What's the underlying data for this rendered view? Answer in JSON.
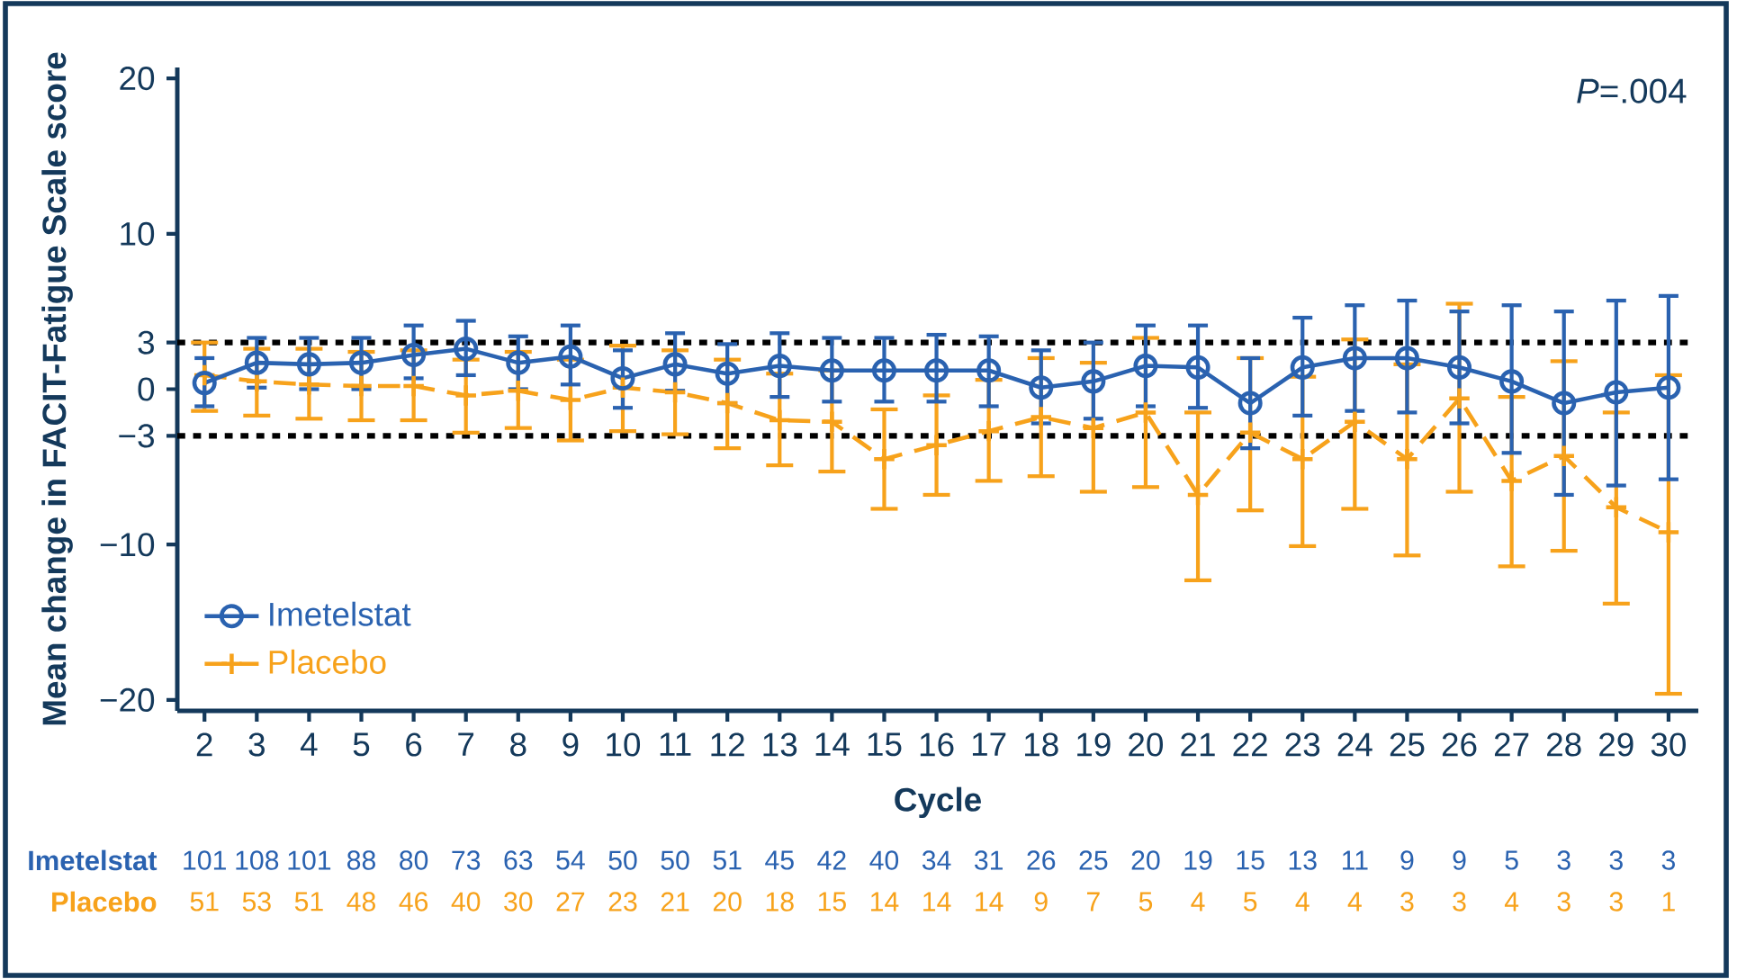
{
  "chart_data": {
    "type": "line",
    "xlabel": "Cycle",
    "ylabel": "Mean change in FACIT-Fatigue Scale score",
    "categories": [
      "2",
      "3",
      "4",
      "5",
      "6",
      "7",
      "8",
      "9",
      "10",
      "11",
      "12",
      "13",
      "14",
      "15",
      "16",
      "17",
      "18",
      "19",
      "20",
      "21",
      "22",
      "23",
      "24",
      "25",
      "26",
      "27",
      "28",
      "29",
      "30"
    ],
    "ylim": [
      -20.7,
      20.7
    ],
    "yticks": [
      20,
      10,
      3,
      0,
      {
        "value": -3,
        "label": "−3"
      },
      {
        "value": -10,
        "label": "−10"
      },
      {
        "value": -20,
        "label": "−20"
      }
    ],
    "legend": "bottom left",
    "grid": false,
    "ref_lines": [
      {
        "axis": "y",
        "value": 3,
        "color": "#000000",
        "line_style": "dotted"
      },
      {
        "axis": "y",
        "value": -3,
        "color": "#000000",
        "line_style": "dotted"
      }
    ],
    "series": [
      {
        "name": "Imetelstat",
        "color": "#2a62b0",
        "marker": "circle",
        "line_style": "solid",
        "values": [
          0.4,
          1.7,
          1.6,
          1.7,
          2.2,
          2.6,
          1.7,
          2.1,
          0.7,
          1.6,
          1.0,
          1.5,
          1.2,
          1.2,
          1.2,
          1.2,
          0.1,
          0.5,
          1.5,
          1.4,
          -0.9,
          1.4,
          2.0,
          2.0,
          1.4,
          0.5,
          -0.9,
          -0.2,
          0.1
        ],
        "errors": [
          [
            -1.1,
            2.0
          ],
          [
            0.1,
            3.3
          ],
          [
            0.0,
            3.3
          ],
          [
            0.0,
            3.3
          ],
          [
            0.7,
            4.1
          ],
          [
            0.9,
            4.4
          ],
          [
            0.0,
            3.4
          ],
          [
            0.3,
            4.1
          ],
          [
            -1.2,
            2.5
          ],
          [
            -0.1,
            3.6
          ],
          [
            -0.9,
            2.9
          ],
          [
            -0.5,
            3.6
          ],
          [
            -0.8,
            3.3
          ],
          [
            -0.8,
            3.3
          ],
          [
            -0.8,
            3.5
          ],
          [
            -1.1,
            3.4
          ],
          [
            -2.2,
            2.5
          ],
          [
            -1.9,
            3.0
          ],
          [
            -1.1,
            4.1
          ],
          [
            -1.2,
            4.1
          ],
          [
            -3.8,
            2.0
          ],
          [
            -1.7,
            4.6
          ],
          [
            -1.4,
            5.4
          ],
          [
            -1.5,
            5.7
          ],
          [
            -2.2,
            5.0
          ],
          [
            -4.1,
            5.4
          ],
          [
            -6.8,
            5.0
          ],
          [
            -6.2,
            5.7
          ],
          [
            -5.8,
            6.0
          ]
        ]
      },
      {
        "name": "Placebo",
        "color": "#f7a21b",
        "marker": "cross",
        "line_style": "dashed",
        "values": [
          0.9,
          0.5,
          0.3,
          0.2,
          0.2,
          -0.4,
          -0.1,
          -0.7,
          0.1,
          -0.2,
          -0.9,
          -2.0,
          -2.1,
          -4.5,
          -3.6,
          -2.7,
          -1.8,
          -2.5,
          -1.5,
          -6.8,
          -2.8,
          -4.5,
          -2.1,
          -4.5,
          -0.6,
          -5.9,
          -4.3,
          -7.6,
          -9.2
        ],
        "errors": [
          [
            -1.4,
            3.0
          ],
          [
            -1.7,
            2.6
          ],
          [
            -1.9,
            2.6
          ],
          [
            -2.0,
            2.4
          ],
          [
            -2.0,
            2.5
          ],
          [
            -2.8,
            1.9
          ],
          [
            -2.5,
            2.4
          ],
          [
            -3.3,
            1.9
          ],
          [
            -2.7,
            2.8
          ],
          [
            -2.9,
            2.5
          ],
          [
            -3.8,
            1.9
          ],
          [
            -4.9,
            1.0
          ],
          [
            -5.3,
            1.2
          ],
          [
            -7.7,
            -1.3
          ],
          [
            -6.8,
            -0.4
          ],
          [
            -5.9,
            0.6
          ],
          [
            -5.6,
            2.0
          ],
          [
            -6.6,
            1.7
          ],
          [
            -6.3,
            3.3
          ],
          [
            -12.3,
            -1.5
          ],
          [
            -7.8,
            2.0
          ],
          [
            -10.1,
            0.8
          ],
          [
            -7.7,
            3.2
          ],
          [
            -10.7,
            1.6
          ],
          [
            -6.6,
            5.5
          ],
          [
            -11.4,
            -0.5
          ],
          [
            -10.4,
            1.8
          ],
          [
            -13.8,
            -1.5
          ],
          [
            -19.6,
            0.9
          ]
        ]
      }
    ],
    "annotations": [
      "*P*=.004",
      "101",
      "108",
      "101",
      "88",
      "80",
      "73",
      "63",
      "54",
      "50",
      "50",
      "51",
      "45",
      "42",
      "40",
      "34",
      "31",
      "26",
      "25",
      "20",
      "19",
      "15",
      "13",
      "11",
      "9",
      "9",
      "5",
      "3",
      "3",
      "3",
      "51",
      "53",
      "51",
      "48",
      "46",
      "40",
      "30",
      "27",
      "23",
      "21",
      "20",
      "18",
      "15",
      "14",
      "14",
      "14",
      "9",
      "7",
      "5",
      "4",
      "5",
      "4",
      "4",
      "3",
      "3",
      "4",
      "3",
      "3",
      "1"
    ]
  }
}
